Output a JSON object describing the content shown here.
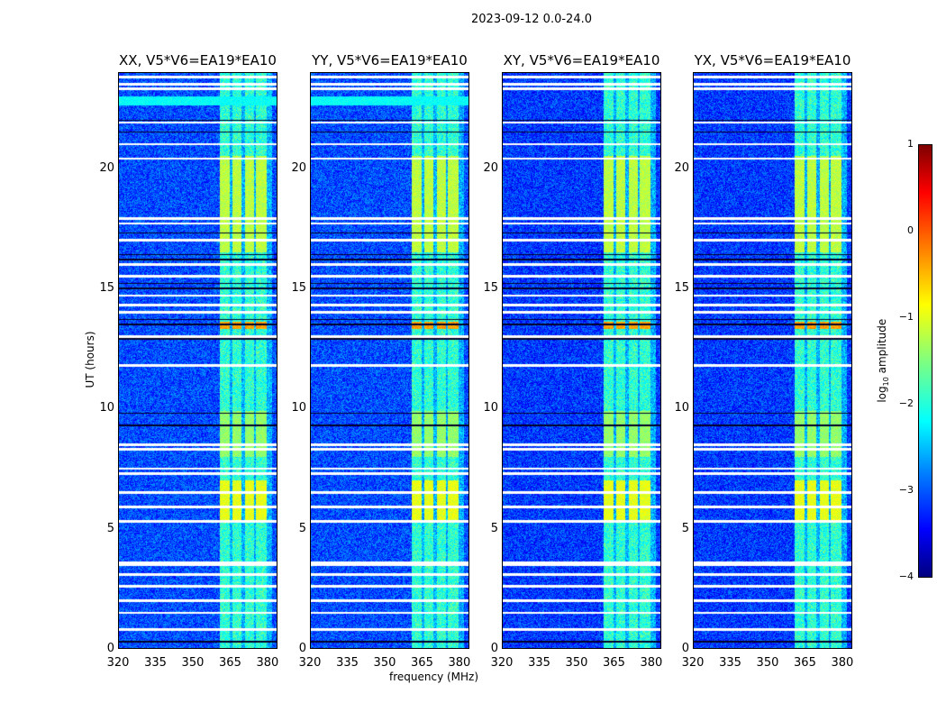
{
  "chart_data": {
    "type": "heatmap",
    "title": "2023-09-12 0.0-24.0",
    "panels": [
      {
        "title": "XX, V5*V6=EA19*EA10",
        "bright_row": true
      },
      {
        "title": "YY, V5*V6=EA19*EA10",
        "bright_row": true
      },
      {
        "title": "XY, V5*V6=EA19*EA10",
        "bright_row": false
      },
      {
        "title": "YX, V5*V6=EA19*EA10",
        "bright_row": false
      }
    ],
    "xlabel": "frequency (MHz)",
    "ylabel": "UT (hours)",
    "xlim": [
      320,
      384
    ],
    "ylim": [
      0,
      24
    ],
    "xticks": [
      "320",
      "335",
      "350",
      "365",
      "380"
    ],
    "yticks": [
      "0",
      "5",
      "10",
      "15",
      "20"
    ],
    "colorbar": {
      "label_main": "log",
      "label_sub": "10",
      "label_rest": " amplitude",
      "range": [
        -4,
        1
      ],
      "ticks": [
        "1",
        "0",
        "−1",
        "−2",
        "−3",
        "−4"
      ]
    },
    "background_level": -3.0,
    "rfi_band_mhz": [
      361,
      382
    ],
    "rfi_subbands_mhz": [
      [
        361,
        365
      ],
      [
        366,
        369.5
      ],
      [
        371,
        374.5
      ],
      [
        375.5,
        379.5
      ]
    ],
    "elevated_intervals_hours": [
      [
        5.3,
        7.0,
        -1.0
      ],
      [
        8.0,
        9.9,
        -1.4
      ],
      [
        13.3,
        13.6,
        -0.4
      ],
      [
        16.5,
        20.5,
        -1.2
      ]
    ],
    "flagged_hours": [
      0.8,
      1.5,
      2.0,
      2.6,
      3.1,
      3.5,
      3.6,
      5.3,
      5.9,
      6.5,
      7.3,
      7.5,
      8.3,
      8.5,
      11.8,
      13.0,
      14.0,
      14.3,
      14.7,
      15.5,
      16.0,
      17.0,
      17.7,
      17.9,
      20.4,
      21.0,
      21.9,
      23.3,
      23.5,
      23.8
    ],
    "dark_hours": [
      0.3,
      9.3,
      9.8,
      12.9,
      13.5,
      13.7,
      15.0,
      15.2,
      16.2,
      16.4,
      17.3,
      21.5,
      22.0
    ]
  }
}
